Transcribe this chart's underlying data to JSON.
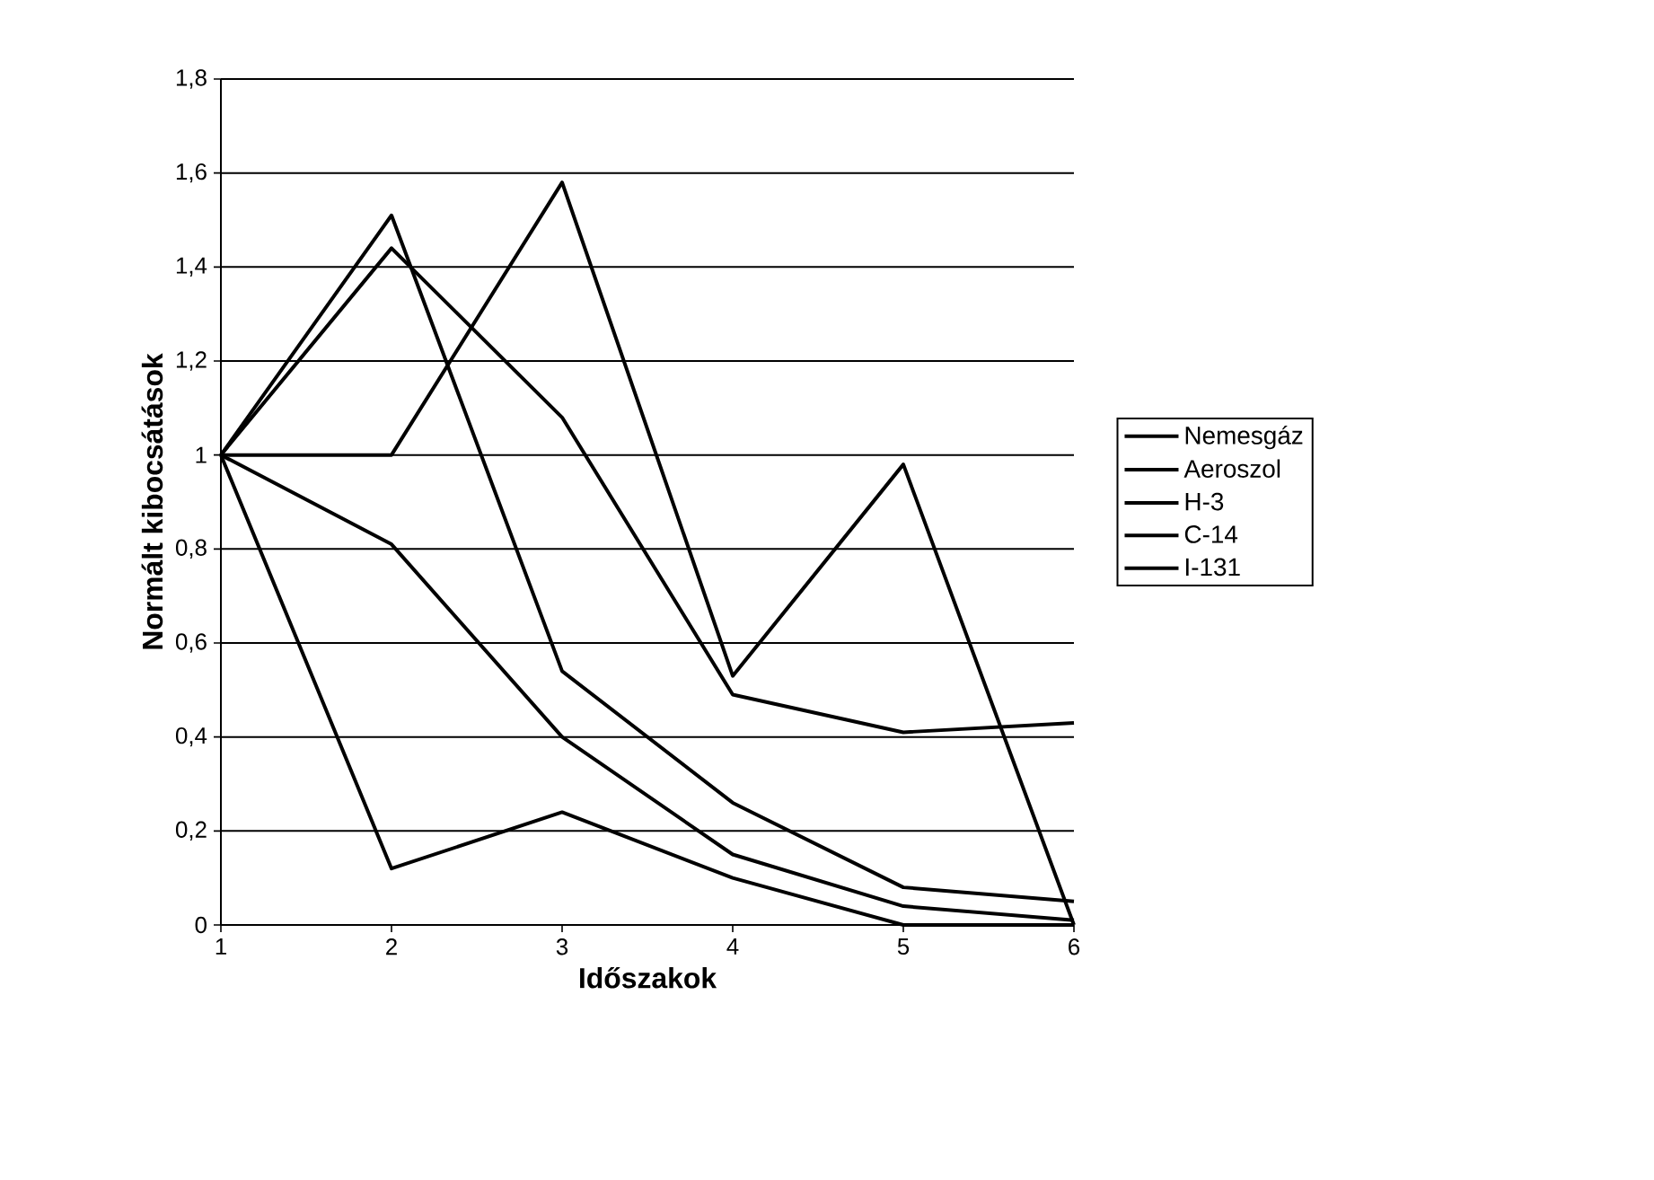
{
  "chart_data": {
    "type": "line",
    "xlabel": "Időszakok",
    "ylabel": "Normált kibocsátások",
    "x": [
      1,
      2,
      3,
      4,
      5,
      6
    ],
    "series": [
      {
        "name": "Nemesgáz",
        "color": "#000000",
        "values": [
          1,
          1.0,
          1.58,
          0.53,
          0.98,
          0.0
        ]
      },
      {
        "name": "Aeroszol",
        "color": "#000000",
        "values": [
          1,
          1.51,
          0.54,
          0.26,
          0.08,
          0.05
        ]
      },
      {
        "name": "H-3",
        "color": "#000000",
        "values": [
          1,
          1.44,
          1.08,
          0.49,
          0.41,
          0.43
        ]
      },
      {
        "name": "C-14",
        "color": "#000000",
        "values": [
          1,
          0.81,
          0.4,
          0.15,
          0.04,
          0.01
        ]
      },
      {
        "name": "I-131",
        "color": "#000000",
        "values": [
          1,
          0.12,
          0.24,
          0.1,
          0.0,
          0.0
        ]
      }
    ],
    "xlim": [
      1,
      6
    ],
    "xticks": [
      1,
      2,
      3,
      4,
      5,
      6
    ],
    "ylim": [
      0,
      1.8
    ],
    "yticks": [
      0,
      {
        "value": 0.2,
        "label": "0,2"
      },
      {
        "value": 0.4,
        "label": "0,4"
      },
      {
        "value": 0.6,
        "label": "0,6"
      },
      {
        "value": 0.8,
        "label": "0,8"
      },
      1,
      {
        "value": 1.2,
        "label": "1,2"
      },
      {
        "value": 1.4,
        "label": "1,4"
      },
      {
        "value": 1.6,
        "label": "1,6"
      },
      {
        "value": 1.8,
        "label": "1,8"
      }
    ],
    "grid": "y",
    "legend": "right",
    "marker": "none",
    "line_style": "solid"
  }
}
